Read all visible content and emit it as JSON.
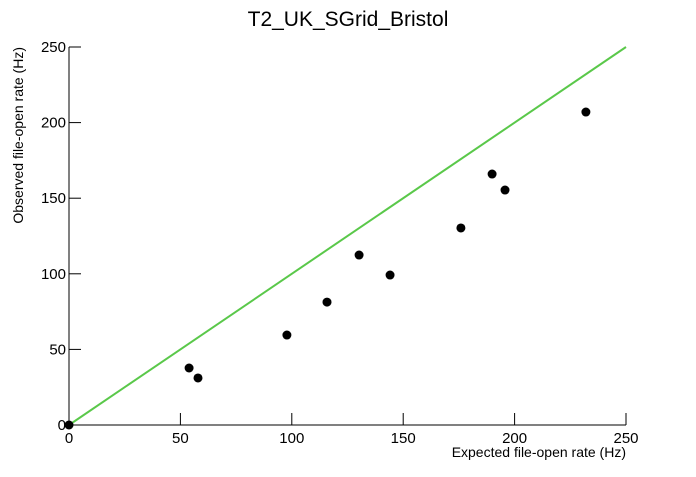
{
  "chart_data": {
    "type": "scatter",
    "title": "T2_UK_SGrid_Bristol",
    "x_label": "Expected file-open rate (Hz)",
    "y_label": "Observed file-open rate (Hz)",
    "series": [
      {
        "color": "#000000",
        "x": [
          0,
          53.9,
          57.9,
          97.8,
          115.8,
          130.2,
          144.1,
          175.9,
          189.9,
          195.7,
          232
        ],
        "values": [
          0,
          37.7,
          31.1,
          59.5,
          81.3,
          112.4,
          99.2,
          130.3,
          166,
          155.4,
          207
        ]
      }
    ],
    "reference_line": {
      "color": "#5ac84a",
      "x": [
        0,
        250
      ],
      "values": [
        0,
        250
      ]
    },
    "xlim": [
      0,
      250
    ],
    "ylim": [
      0,
      250
    ],
    "xticks": [
      0,
      50,
      100,
      150,
      200,
      250
    ],
    "yticks": [
      0,
      50,
      100,
      150,
      200,
      250
    ]
  }
}
